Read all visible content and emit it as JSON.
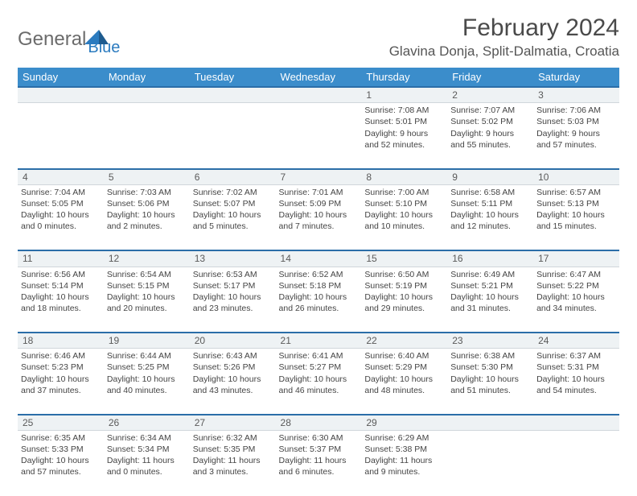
{
  "brand": {
    "text1": "General",
    "text2": "Blue",
    "tri_color1": "#2b7bbf",
    "tri_color2": "#1e5b8f"
  },
  "header": {
    "title": "February 2024",
    "location": "Glavina Donja, Split-Dalmatia, Croatia"
  },
  "styling": {
    "header_bg": "#3b8dcb",
    "daynum_bg": "#eef2f4",
    "daynum_border_top": "#2b6ea8",
    "body_bg": "#ffffff",
    "title_fontsize": 30,
    "location_fontsize": 17,
    "dayhead_fontsize": 13,
    "cell_fontsize": 10.5
  },
  "weekdays": [
    "Sunday",
    "Monday",
    "Tuesday",
    "Wednesday",
    "Thursday",
    "Friday",
    "Saturday"
  ],
  "weeks": [
    {
      "nums": [
        "",
        "",
        "",
        "",
        "1",
        "2",
        "3"
      ],
      "cells": [
        null,
        null,
        null,
        null,
        {
          "sunrise": "7:08 AM",
          "sunset": "5:01 PM",
          "dl1": "Daylight: 9 hours",
          "dl2": "and 52 minutes."
        },
        {
          "sunrise": "7:07 AM",
          "sunset": "5:02 PM",
          "dl1": "Daylight: 9 hours",
          "dl2": "and 55 minutes."
        },
        {
          "sunrise": "7:06 AM",
          "sunset": "5:03 PM",
          "dl1": "Daylight: 9 hours",
          "dl2": "and 57 minutes."
        }
      ]
    },
    {
      "nums": [
        "4",
        "5",
        "6",
        "7",
        "8",
        "9",
        "10"
      ],
      "cells": [
        {
          "sunrise": "7:04 AM",
          "sunset": "5:05 PM",
          "dl1": "Daylight: 10 hours",
          "dl2": "and 0 minutes."
        },
        {
          "sunrise": "7:03 AM",
          "sunset": "5:06 PM",
          "dl1": "Daylight: 10 hours",
          "dl2": "and 2 minutes."
        },
        {
          "sunrise": "7:02 AM",
          "sunset": "5:07 PM",
          "dl1": "Daylight: 10 hours",
          "dl2": "and 5 minutes."
        },
        {
          "sunrise": "7:01 AM",
          "sunset": "5:09 PM",
          "dl1": "Daylight: 10 hours",
          "dl2": "and 7 minutes."
        },
        {
          "sunrise": "7:00 AM",
          "sunset": "5:10 PM",
          "dl1": "Daylight: 10 hours",
          "dl2": "and 10 minutes."
        },
        {
          "sunrise": "6:58 AM",
          "sunset": "5:11 PM",
          "dl1": "Daylight: 10 hours",
          "dl2": "and 12 minutes."
        },
        {
          "sunrise": "6:57 AM",
          "sunset": "5:13 PM",
          "dl1": "Daylight: 10 hours",
          "dl2": "and 15 minutes."
        }
      ]
    },
    {
      "nums": [
        "11",
        "12",
        "13",
        "14",
        "15",
        "16",
        "17"
      ],
      "cells": [
        {
          "sunrise": "6:56 AM",
          "sunset": "5:14 PM",
          "dl1": "Daylight: 10 hours",
          "dl2": "and 18 minutes."
        },
        {
          "sunrise": "6:54 AM",
          "sunset": "5:15 PM",
          "dl1": "Daylight: 10 hours",
          "dl2": "and 20 minutes."
        },
        {
          "sunrise": "6:53 AM",
          "sunset": "5:17 PM",
          "dl1": "Daylight: 10 hours",
          "dl2": "and 23 minutes."
        },
        {
          "sunrise": "6:52 AM",
          "sunset": "5:18 PM",
          "dl1": "Daylight: 10 hours",
          "dl2": "and 26 minutes."
        },
        {
          "sunrise": "6:50 AM",
          "sunset": "5:19 PM",
          "dl1": "Daylight: 10 hours",
          "dl2": "and 29 minutes."
        },
        {
          "sunrise": "6:49 AM",
          "sunset": "5:21 PM",
          "dl1": "Daylight: 10 hours",
          "dl2": "and 31 minutes."
        },
        {
          "sunrise": "6:47 AM",
          "sunset": "5:22 PM",
          "dl1": "Daylight: 10 hours",
          "dl2": "and 34 minutes."
        }
      ]
    },
    {
      "nums": [
        "18",
        "19",
        "20",
        "21",
        "22",
        "23",
        "24"
      ],
      "cells": [
        {
          "sunrise": "6:46 AM",
          "sunset": "5:23 PM",
          "dl1": "Daylight: 10 hours",
          "dl2": "and 37 minutes."
        },
        {
          "sunrise": "6:44 AM",
          "sunset": "5:25 PM",
          "dl1": "Daylight: 10 hours",
          "dl2": "and 40 minutes."
        },
        {
          "sunrise": "6:43 AM",
          "sunset": "5:26 PM",
          "dl1": "Daylight: 10 hours",
          "dl2": "and 43 minutes."
        },
        {
          "sunrise": "6:41 AM",
          "sunset": "5:27 PM",
          "dl1": "Daylight: 10 hours",
          "dl2": "and 46 minutes."
        },
        {
          "sunrise": "6:40 AM",
          "sunset": "5:29 PM",
          "dl1": "Daylight: 10 hours",
          "dl2": "and 48 minutes."
        },
        {
          "sunrise": "6:38 AM",
          "sunset": "5:30 PM",
          "dl1": "Daylight: 10 hours",
          "dl2": "and 51 minutes."
        },
        {
          "sunrise": "6:37 AM",
          "sunset": "5:31 PM",
          "dl1": "Daylight: 10 hours",
          "dl2": "and 54 minutes."
        }
      ]
    },
    {
      "nums": [
        "25",
        "26",
        "27",
        "28",
        "29",
        "",
        ""
      ],
      "cells": [
        {
          "sunrise": "6:35 AM",
          "sunset": "5:33 PM",
          "dl1": "Daylight: 10 hours",
          "dl2": "and 57 minutes."
        },
        {
          "sunrise": "6:34 AM",
          "sunset": "5:34 PM",
          "dl1": "Daylight: 11 hours",
          "dl2": "and 0 minutes."
        },
        {
          "sunrise": "6:32 AM",
          "sunset": "5:35 PM",
          "dl1": "Daylight: 11 hours",
          "dl2": "and 3 minutes."
        },
        {
          "sunrise": "6:30 AM",
          "sunset": "5:37 PM",
          "dl1": "Daylight: 11 hours",
          "dl2": "and 6 minutes."
        },
        {
          "sunrise": "6:29 AM",
          "sunset": "5:38 PM",
          "dl1": "Daylight: 11 hours",
          "dl2": "and 9 minutes."
        },
        null,
        null
      ]
    }
  ],
  "labels": {
    "sunrise": "Sunrise: ",
    "sunset": "Sunset: "
  }
}
